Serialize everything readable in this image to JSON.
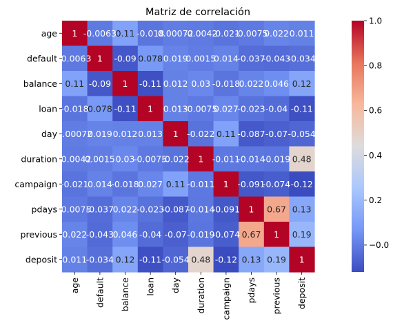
{
  "chart_data": {
    "type": "heatmap",
    "title": "Matriz de correlación",
    "xlabel": "",
    "ylabel": "",
    "rows": [
      "age",
      "default",
      "balance",
      "loan",
      "day",
      "duration",
      "campaign",
      "pdays",
      "previous",
      "deposit"
    ],
    "columns": [
      "age",
      "default",
      "balance",
      "loan",
      "day",
      "duration",
      "campaign",
      "pdays",
      "previous",
      "deposit"
    ],
    "values": [
      [
        1,
        -0.0063,
        0.11,
        -0.018,
        0.00072,
        -0.0042,
        -0.021,
        -0.0075,
        0.022,
        0.011
      ],
      [
        -0.0063,
        1,
        -0.09,
        0.078,
        0.019,
        0.0015,
        0.014,
        -0.037,
        -0.043,
        -0.034
      ],
      [
        0.11,
        -0.09,
        1,
        -0.11,
        0.012,
        0.03,
        -0.018,
        0.022,
        0.046,
        0.12
      ],
      [
        -0.018,
        0.078,
        -0.11,
        1,
        0.013,
        -0.0075,
        0.027,
        -0.023,
        -0.04,
        -0.11
      ],
      [
        0.00072,
        0.019,
        0.012,
        0.013,
        1,
        -0.022,
        0.11,
        -0.087,
        -0.07,
        -0.054
      ],
      [
        -0.0042,
        0.0015,
        0.03,
        -0.0075,
        -0.022,
        1,
        -0.011,
        -0.014,
        -0.019,
        0.48
      ],
      [
        -0.021,
        0.014,
        -0.018,
        0.027,
        0.11,
        -0.011,
        1,
        -0.091,
        -0.074,
        -0.12
      ],
      [
        -0.0075,
        -0.037,
        0.022,
        -0.023,
        -0.087,
        -0.014,
        -0.091,
        1,
        0.67,
        0.13
      ],
      [
        0.022,
        -0.043,
        0.046,
        -0.04,
        -0.07,
        -0.019,
        -0.074,
        0.67,
        1,
        0.19
      ],
      [
        0.011,
        -0.034,
        0.12,
        -0.11,
        -0.054,
        0.48,
        -0.12,
        0.13,
        0.19,
        1
      ]
    ],
    "cell_labels": [
      [
        "1",
        "-0.0063",
        "0.11",
        "-0.018",
        "0.00072",
        "-0.0042",
        "-0.021",
        "-0.0075",
        "0.022",
        "0.011"
      ],
      [
        "-0.0063",
        "1",
        "-0.09",
        "0.078",
        "0.019",
        "0.0015",
        "0.014",
        "-0.037",
        "-0.043",
        "-0.034"
      ],
      [
        "0.11",
        "-0.09",
        "1",
        "-0.11",
        "0.012",
        "0.03",
        "-0.018",
        "0.022",
        "0.046",
        "0.12"
      ],
      [
        "-0.018",
        "0.078",
        "-0.11",
        "1",
        "0.013",
        "-0.0075",
        "0.027",
        "-0.023",
        "-0.04",
        "-0.11"
      ],
      [
        "0.00072",
        "0.019",
        "0.012",
        "0.013",
        "1",
        "-0.022",
        "0.11",
        "-0.087",
        "-0.07",
        "-0.054"
      ],
      [
        "-0.0042",
        "0.0015",
        "0.03",
        "-0.0075",
        "-0.022",
        "1",
        "-0.011",
        "-0.014",
        "-0.019",
        "0.48"
      ],
      [
        "-0.021",
        "0.014",
        "-0.018",
        "0.027",
        "0.11",
        "-0.011",
        "1",
        "-0.091",
        "-0.074",
        "-0.12"
      ],
      [
        "-0.0075",
        "-0.037",
        "0.022",
        "-0.023",
        "-0.087",
        "-0.014",
        "-0.091",
        "1",
        "0.67",
        "0.13"
      ],
      [
        "0.022",
        "-0.043",
        "0.046",
        "-0.04",
        "-0.07",
        "-0.019",
        "-0.074",
        "0.67",
        "1",
        "0.19"
      ],
      [
        "0.011",
        "-0.034",
        "0.12",
        "-0.11",
        "-0.054",
        "0.48",
        "-0.12",
        "0.13",
        "0.19",
        "1"
      ]
    ],
    "colormap": "coolwarm",
    "colormap_stops": [
      "#3b4cc0",
      "#7597f6",
      "#aac7fd",
      "#dddcdc",
      "#f7b89c",
      "#e7755b",
      "#b40426"
    ],
    "vmin": -0.12,
    "vmax": 1,
    "colorbar": {
      "ticks": [
        0.0,
        0.2,
        0.4,
        0.6,
        0.8,
        1.0
      ],
      "tick_labels": [
        "−0.0",
        "0.2",
        "0.4",
        "0.6",
        "0.8",
        "1.0"
      ]
    },
    "grid": false,
    "legend": "colorbar-right"
  }
}
